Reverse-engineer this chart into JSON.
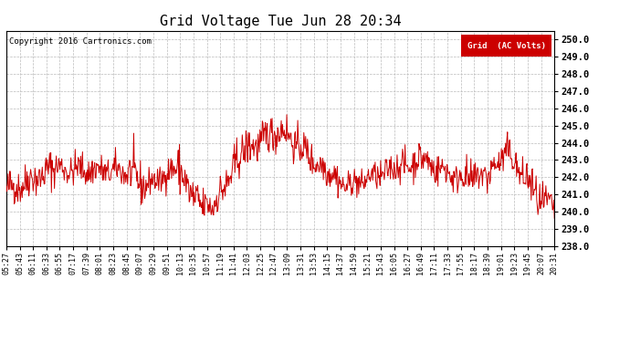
{
  "title": "Grid Voltage Tue Jun 28 20:34",
  "copyright": "Copyright 2016 Cartronics.com",
  "legend_label": "Grid  (AC Volts)",
  "legend_bg": "#cc0000",
  "legend_fg": "#ffffff",
  "line_color": "#cc0000",
  "bg_color": "#ffffff",
  "plot_bg": "#ffffff",
  "grid_color": "#bbbbbb",
  "ylim": [
    238.0,
    250.5
  ],
  "yticks": [
    238.0,
    239.0,
    240.0,
    241.0,
    242.0,
    243.0,
    244.0,
    245.0,
    246.0,
    247.0,
    248.0,
    249.0,
    250.0
  ],
  "xtick_labels": [
    "05:27",
    "05:43",
    "06:11",
    "06:33",
    "06:55",
    "07:17",
    "07:39",
    "08:01",
    "08:23",
    "08:45",
    "09:07",
    "09:29",
    "09:51",
    "10:13",
    "10:35",
    "10:57",
    "11:19",
    "11:41",
    "12:03",
    "12:25",
    "12:47",
    "13:09",
    "13:31",
    "13:53",
    "14:15",
    "14:37",
    "14:59",
    "15:21",
    "15:43",
    "16:05",
    "16:27",
    "16:49",
    "17:11",
    "17:33",
    "17:55",
    "18:17",
    "18:39",
    "19:01",
    "19:23",
    "19:45",
    "20:07",
    "20:31"
  ],
  "num_points": 900
}
